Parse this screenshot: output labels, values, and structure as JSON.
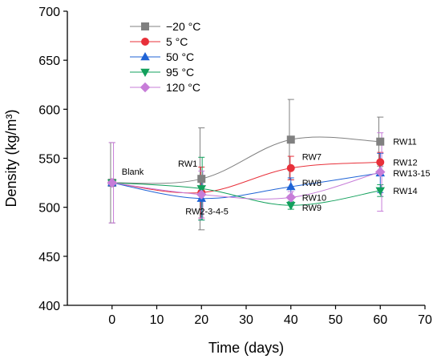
{
  "chart_data": {
    "type": "scatter",
    "xlabel": "Time (days)",
    "ylabel": "Density (kg/m³)",
    "xlim": [
      -10,
      70
    ],
    "ylim": [
      400,
      700
    ],
    "xticks": [
      0,
      10,
      20,
      30,
      40,
      50,
      60,
      70
    ],
    "yticks": [
      400,
      450,
      500,
      550,
      600,
      650,
      700
    ],
    "grid": false,
    "legend_position": "top-left",
    "x": [
      0,
      20,
      40,
      60
    ],
    "series": [
      {
        "name": "−20 °C",
        "color": "#808080",
        "marker": "square",
        "values": [
          525,
          529,
          569,
          567
        ],
        "errors": [
          41,
          52,
          41,
          25
        ]
      },
      {
        "name": "5 °C",
        "color": "#e8303a",
        "marker": "circle",
        "values": [
          525,
          515,
          540,
          546
        ],
        "errors": [
          2,
          26,
          12,
          10
        ]
      },
      {
        "name": "50 °C",
        "color": "#1f63d6",
        "marker": "triangle-up",
        "values": [
          525,
          509,
          521,
          535
        ],
        "errors": [
          1,
          22,
          9,
          20
        ]
      },
      {
        "name": "95 °C",
        "color": "#12a05c",
        "marker": "triangle-down",
        "values": [
          525,
          519,
          502,
          517
        ],
        "errors": [
          1,
          32,
          4,
          6
        ]
      },
      {
        "name": "120 °C",
        "color": "#c77dd8",
        "marker": "diamond",
        "values": [
          525,
          513,
          510,
          536
        ],
        "errors": [
          41,
          24,
          6,
          40
        ]
      }
    ],
    "annotations": [
      {
        "text": "Blank",
        "x": 0,
        "y": 525
      },
      {
        "text": "RW1",
        "x": 20,
        "y": 529
      },
      {
        "text": "RW2-3-4-5",
        "x": 20,
        "y": 509
      },
      {
        "text": "RW7",
        "x": 40,
        "y": 540
      },
      {
        "text": "RW8",
        "x": 40,
        "y": 521
      },
      {
        "text": "RW10",
        "x": 40,
        "y": 510
      },
      {
        "text": "RW9",
        "x": 40,
        "y": 502
      },
      {
        "text": "RW11",
        "x": 60,
        "y": 567
      },
      {
        "text": "RW12",
        "x": 60,
        "y": 546
      },
      {
        "text": "RW13-15",
        "x": 60,
        "y": 535
      },
      {
        "text": "RW14",
        "x": 60,
        "y": 517
      }
    ]
  }
}
